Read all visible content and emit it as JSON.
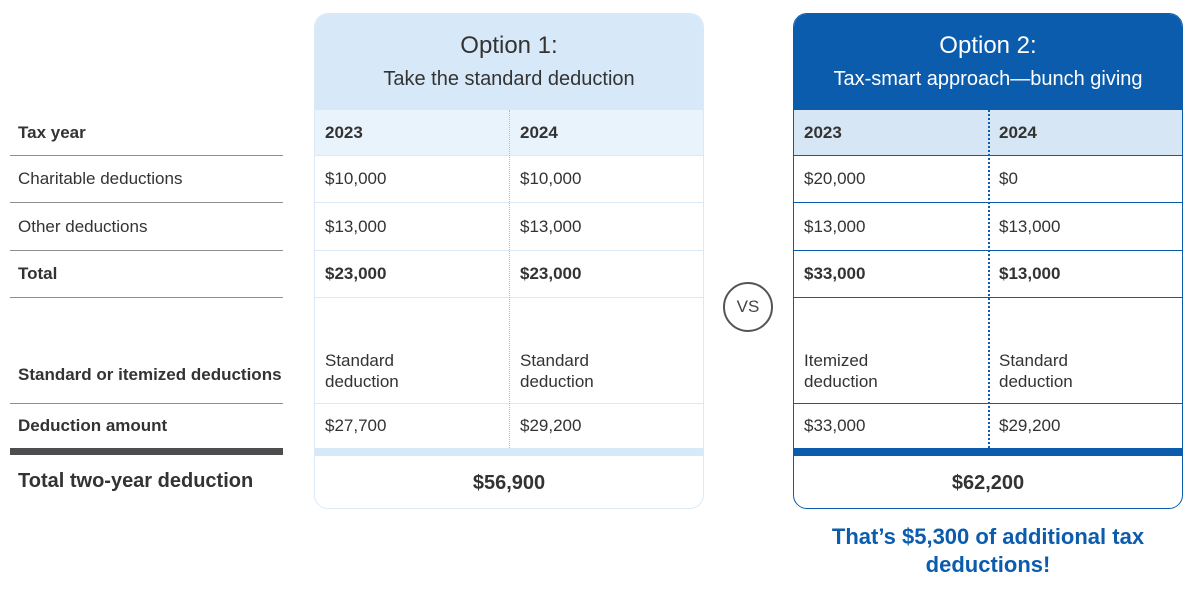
{
  "row_labels": {
    "tax_year": "Tax year",
    "charitable": "Charitable deductions",
    "other": "Other deductions",
    "total": "Total",
    "type": "Standard or itemized deductions",
    "amount": "Deduction amount",
    "two_year": "Total two-year deduction"
  },
  "option1": {
    "title": "Option 1:",
    "subtitle": "Take the standard deduction",
    "years": [
      "2023",
      "2024"
    ],
    "charitable": [
      "$10,000",
      "$10,000"
    ],
    "other": [
      "$13,000",
      "$13,000"
    ],
    "total": [
      "$23,000",
      "$23,000"
    ],
    "type": [
      "Standard deduction",
      "Standard deduction"
    ],
    "amount": [
      "$27,700",
      "$29,200"
    ],
    "two_year_total": "$56,900"
  },
  "option2": {
    "title": "Option 2:",
    "subtitle": "Tax-smart approach—bunch giving",
    "years": [
      "2023",
      "2024"
    ],
    "charitable": [
      "$20,000",
      "$0"
    ],
    "other": [
      "$13,000",
      "$13,000"
    ],
    "total": [
      "$33,000",
      "$13,000"
    ],
    "type": [
      "Itemized deduction",
      "Standard deduction"
    ],
    "amount": [
      "$33,000",
      "$29,200"
    ],
    "two_year_total": "$62,200"
  },
  "vs_label": "VS",
  "callout": "That’s $5,300 of additional tax deductions!",
  "colors": {
    "brand_blue": "#0b5cad",
    "light_blue": "#d7e9f8",
    "dark_bar": "#4d4d4f"
  }
}
